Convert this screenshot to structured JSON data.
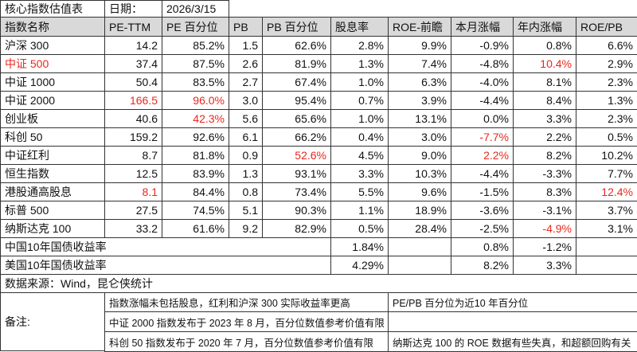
{
  "header": {
    "title": "核心指数估值表",
    "date_label": "日期：",
    "date": "2026/3/15"
  },
  "table": {
    "columns": [
      "指数名称",
      "PE-TTM",
      "PE 百分位",
      "PB",
      "PB 百分位",
      "股息率",
      "ROE-前瞻",
      "本月涨幅",
      "年内涨幅",
      "ROE/PB"
    ],
    "rows": [
      [
        "沪深 300",
        "14.2",
        "85.2%",
        "1.5",
        "62.6%",
        "2.8%",
        "9.9%",
        "-0.9%",
        "0.8%",
        "6.6%"
      ],
      [
        "中证 500",
        "37.4",
        "87.5%",
        "2.6",
        "81.9%",
        "1.3%",
        "7.4%",
        "-4.8%",
        "10.4%",
        "2.9%"
      ],
      [
        "中证 1000",
        "50.4",
        "83.5%",
        "2.7",
        "67.4%",
        "1.0%",
        "6.3%",
        "-4.0%",
        "8.1%",
        "2.3%"
      ],
      [
        "中证 2000",
        "166.5",
        "96.0%",
        "3.0",
        "95.4%",
        "0.7%",
        "3.9%",
        "-4.4%",
        "8.4%",
        "1.3%"
      ],
      [
        "创业板",
        "40.6",
        "42.3%",
        "5.6",
        "65.6%",
        "1.0%",
        "13.1%",
        "0.0%",
        "3.3%",
        "2.3%"
      ],
      [
        "科创 50",
        "159.2",
        "92.6%",
        "6.1",
        "66.2%",
        "0.4%",
        "3.0%",
        "-7.7%",
        "2.2%",
        "0.5%"
      ],
      [
        "中证红利",
        "8.7",
        "81.8%",
        "0.9",
        "52.6%",
        "4.5%",
        "9.0%",
        "2.2%",
        "8.2%",
        "10.2%"
      ],
      [
        "恒生指数",
        "12.5",
        "83.9%",
        "1.3",
        "93.1%",
        "3.3%",
        "10.3%",
        "-4.4%",
        "-3.3%",
        "7.7%"
      ],
      [
        "港股通高股息",
        "8.1",
        "84.4%",
        "0.8",
        "73.4%",
        "5.5%",
        "9.6%",
        "-1.5%",
        "8.3%",
        "12.4%"
      ],
      [
        "标普 500",
        "27.5",
        "74.5%",
        "5.1",
        "90.3%",
        "1.1%",
        "18.9%",
        "-3.6%",
        "-3.1%",
        "3.7%"
      ],
      [
        "纳斯达克 100",
        "33.2",
        "61.6%",
        "9.2",
        "82.9%",
        "0.5%",
        "28.4%",
        "-2.5%",
        "-4.9%",
        "3.1%"
      ]
    ],
    "highlight_color": "#e8281e",
    "highlighted": [
      [
        1,
        0
      ],
      [
        1,
        8
      ],
      [
        3,
        1
      ],
      [
        3,
        2
      ],
      [
        4,
        2
      ],
      [
        5,
        7
      ],
      [
        6,
        4
      ],
      [
        6,
        7
      ],
      [
        8,
        1
      ],
      [
        8,
        9
      ],
      [
        10,
        8
      ]
    ]
  },
  "bond_rows": [
    {
      "label": "中国10年国债收益率",
      "dividend_yield": "1.84%",
      "month_change": "0.8%",
      "ytd_change": "-1.2%"
    },
    {
      "label": "美国10年国债收益率",
      "dividend_yield": "4.29%",
      "month_change": "8.2%",
      "ytd_change": "3.3%"
    }
  ],
  "source": "数据来源：Wind，昆仑侠统计",
  "notes": {
    "label": "备注:",
    "items": [
      {
        "left": "指数涨幅未包括股息，红利和沪深 300 实际收益率更高",
        "right": "PE/PB 百分位为近10 年百分位"
      },
      {
        "left": "中证 2000 指数发布于 2023 年 8 月，百分位数值参考价值有限"
      },
      {
        "left": "科创 50 指数发布于 2020 年 7 月，百分位数值参考价值有限",
        "right": "纳斯达克 100 的 ROE 数据有些失真，和超额回购有关"
      }
    ]
  }
}
